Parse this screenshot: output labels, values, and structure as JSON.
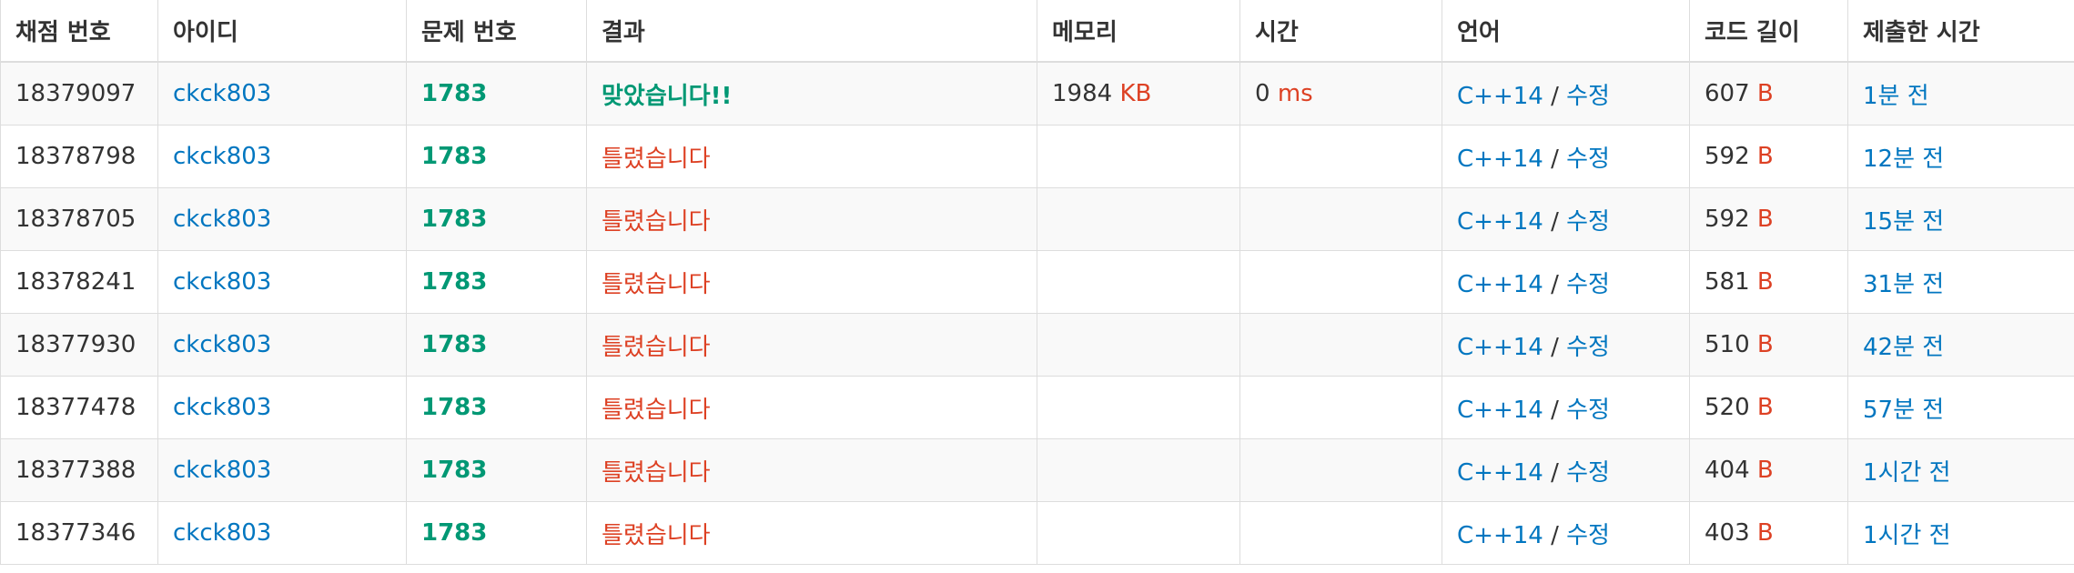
{
  "headers": {
    "submission_id": "채점 번호",
    "user_id": "아이디",
    "problem_id": "문제 번호",
    "result": "결과",
    "memory": "메모리",
    "time": "시간",
    "language": "언어",
    "code_length": "코드 길이",
    "submitted_at": "제출한 시간"
  },
  "units": {
    "memory": "KB",
    "time": "ms",
    "code_length": "B"
  },
  "edit_label": "수정",
  "separator": "/",
  "colors": {
    "link": "#0076c0",
    "accepted": "#009874",
    "wrong": "#dd4124",
    "problem": "#009874",
    "row_stripe": "#f9f9f9",
    "border": "#dddddd"
  },
  "rows": [
    {
      "submission_id": "18379097",
      "user_id": "ckck803",
      "problem_id": "1783",
      "result": "맞았습니다!!",
      "result_status": "accepted",
      "memory": "1984",
      "time": "0",
      "language": "C++14",
      "code_length": "607",
      "submitted_at": "1분 전"
    },
    {
      "submission_id": "18378798",
      "user_id": "ckck803",
      "problem_id": "1783",
      "result": "틀렸습니다",
      "result_status": "wrong",
      "memory": "",
      "time": "",
      "language": "C++14",
      "code_length": "592",
      "submitted_at": "12분 전"
    },
    {
      "submission_id": "18378705",
      "user_id": "ckck803",
      "problem_id": "1783",
      "result": "틀렸습니다",
      "result_status": "wrong",
      "memory": "",
      "time": "",
      "language": "C++14",
      "code_length": "592",
      "submitted_at": "15분 전"
    },
    {
      "submission_id": "18378241",
      "user_id": "ckck803",
      "problem_id": "1783",
      "result": "틀렸습니다",
      "result_status": "wrong",
      "memory": "",
      "time": "",
      "language": "C++14",
      "code_length": "581",
      "submitted_at": "31분 전"
    },
    {
      "submission_id": "18377930",
      "user_id": "ckck803",
      "problem_id": "1783",
      "result": "틀렸습니다",
      "result_status": "wrong",
      "memory": "",
      "time": "",
      "language": "C++14",
      "code_length": "510",
      "submitted_at": "42분 전"
    },
    {
      "submission_id": "18377478",
      "user_id": "ckck803",
      "problem_id": "1783",
      "result": "틀렸습니다",
      "result_status": "wrong",
      "memory": "",
      "time": "",
      "language": "C++14",
      "code_length": "520",
      "submitted_at": "57분 전"
    },
    {
      "submission_id": "18377388",
      "user_id": "ckck803",
      "problem_id": "1783",
      "result": "틀렸습니다",
      "result_status": "wrong",
      "memory": "",
      "time": "",
      "language": "C++14",
      "code_length": "404",
      "submitted_at": "1시간 전"
    },
    {
      "submission_id": "18377346",
      "user_id": "ckck803",
      "problem_id": "1783",
      "result": "틀렸습니다",
      "result_status": "wrong",
      "memory": "",
      "time": "",
      "language": "C++14",
      "code_length": "403",
      "submitted_at": "1시간 전"
    }
  ]
}
